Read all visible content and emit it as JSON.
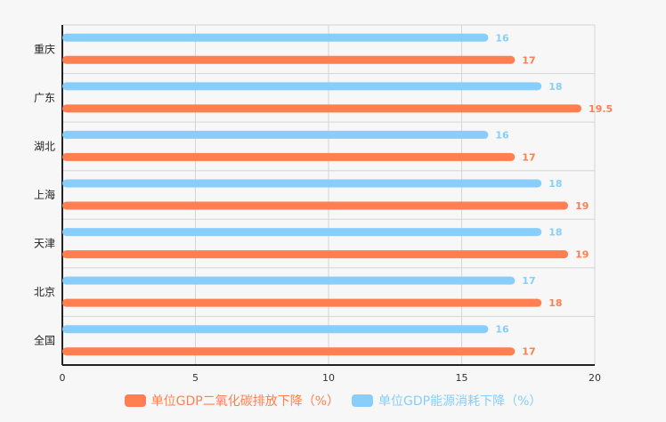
{
  "chart_data": {
    "type": "bar",
    "orientation": "horizontal",
    "categories": [
      "全国",
      "北京",
      "天津",
      "上海",
      "湖北",
      "广东",
      "重庆"
    ],
    "series": [
      {
        "name": "单位GDP二氧化碳排放下降（%）",
        "color": "#ff7f50",
        "values": [
          17,
          18,
          19,
          19,
          17,
          19.5,
          17
        ]
      },
      {
        "name": "单位GDP能源消耗下降（%）",
        "color": "#87cefa",
        "values": [
          16,
          17,
          18,
          18,
          16,
          18,
          16
        ]
      }
    ],
    "x_ticks": [
      "0",
      "5",
      "10",
      "15",
      "20"
    ],
    "xlim": [
      0,
      20
    ],
    "grid": true,
    "legend_position": "bottom",
    "data_labels": true
  }
}
